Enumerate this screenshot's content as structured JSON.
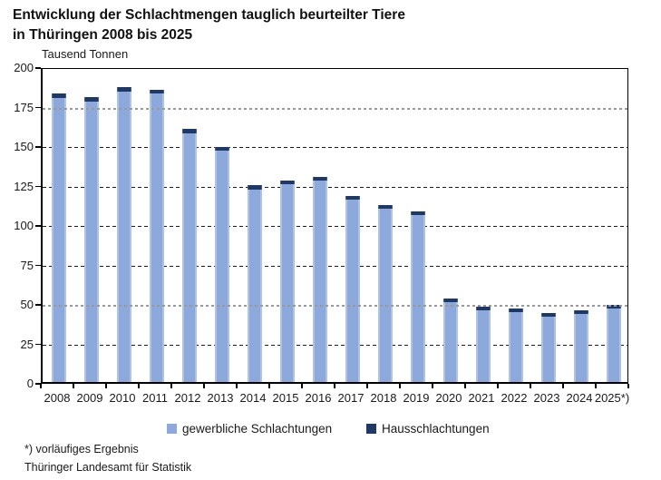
{
  "title": {
    "line1": "Entwicklung der Schlachtmengen tauglich beurteilter Tiere",
    "line2": "in Thüringen 2008 bis 2025"
  },
  "axis_unit": "Tausend Tonnen",
  "chart_data": {
    "type": "bar",
    "stacked": true,
    "title": "Entwicklung der Schlachtmengen tauglich beurteilter Tiere in Thüringen 2008 bis 2025",
    "ylabel": "Tausend Tonnen",
    "xlabel": "",
    "ylim": [
      0,
      200
    ],
    "ytick_step": 25,
    "grid": "horizontal-dashed",
    "legend_position": "bottom",
    "categories": [
      "2008",
      "2009",
      "2010",
      "2011",
      "2012",
      "2013",
      "2014",
      "2015",
      "2016",
      "2017",
      "2018",
      "2019",
      "2020",
      "2021",
      "2022",
      "2023",
      "2024",
      "2025*)"
    ],
    "series": [
      {
        "name": "gewerbliche Schlachtungen",
        "color": "#8DA9DB",
        "values": [
          180.0,
          177.5,
          184.0,
          182.5,
          157.5,
          146.5,
          122.0,
          125.5,
          127.5,
          115.5,
          109.5,
          106.0,
          50.5,
          45.3,
          44.3,
          41.5,
          43.3,
          46.8
        ]
      },
      {
        "name": "Hausschlachtungen",
        "color": "#203864",
        "values": [
          2.8,
          2.8,
          3.0,
          2.5,
          2.7,
          2.4,
          2.5,
          2.3,
          2.5,
          2.3,
          2.3,
          2.0,
          2.5,
          2.3,
          2.0,
          2.0,
          2.0,
          2.0
        ]
      }
    ],
    "totals": [
      182.8,
      180.3,
      187.0,
      185.0,
      160.2,
      148.9,
      124.5,
      127.8,
      130.0,
      117.8,
      111.8,
      108.0,
      53.0,
      47.6,
      46.3,
      43.5,
      45.3,
      48.8
    ],
    "gray_reference_lines": [
      175,
      50
    ]
  },
  "y_axis": {
    "ticks": [
      200,
      175,
      150,
      125,
      100,
      75,
      50,
      25,
      0
    ]
  },
  "legend": {
    "items": [
      {
        "label": "gewerbliche Schlachtungen",
        "color": "#8DA9DB"
      },
      {
        "label": "Hausschlachtungen",
        "color": "#203864"
      }
    ]
  },
  "footnote": "*) vorläufiges Ergebnis",
  "source": "Thüringer Landesamt für Statistik",
  "colors": {
    "bar_light": "#8DA9DB",
    "bar_dark": "#203864",
    "grid_dark": "#1c1c1c",
    "grid_gray": "#9a9a9a",
    "axis": "#000000",
    "background": "#ffffff"
  }
}
